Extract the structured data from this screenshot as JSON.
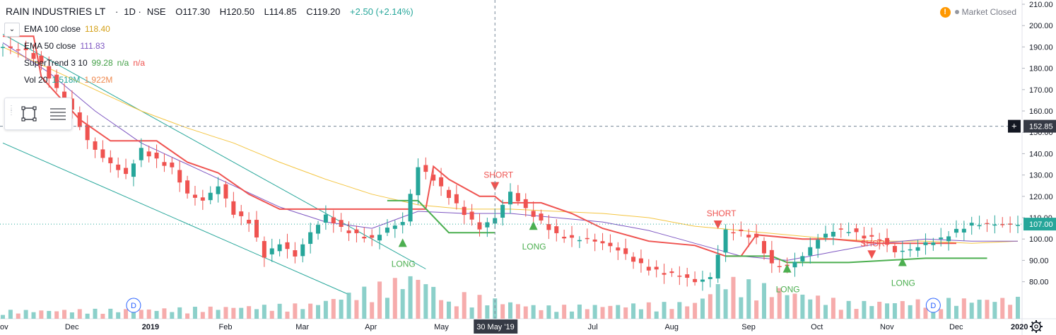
{
  "header": {
    "name": "RAIN INDUSTRIES LT",
    "interval": "1D",
    "exchange": "NSE",
    "open": "O117.30",
    "high": "H120.50",
    "low": "L114.85",
    "close": "C119.20",
    "change": "+2.50 (+2.14%)"
  },
  "indicators": [
    {
      "label": "EMA 100 close",
      "value": "118.40",
      "color": "#f4c542"
    },
    {
      "label": "EMA 50 close",
      "value": "111.83",
      "color": "#7e57c2"
    },
    {
      "label": "SuperTrend 3 10",
      "value": "99.28",
      "value2": "n/a",
      "value3": "n/a",
      "color": "#43a047"
    },
    {
      "label": "Vol 20",
      "value": "1.518M",
      "value2": "1.922M",
      "color": "#26a69a"
    }
  ],
  "market_status": {
    "icon": "warning-icon",
    "text": "Market Closed"
  },
  "colors": {
    "up": "#26a69a",
    "down": "#ef5350",
    "ema100": "#f4c542",
    "ema50": "#7e57c2",
    "supertrend_up": "#4caf50",
    "supertrend_down": "#ef5350",
    "trendline": "#26a69a"
  },
  "chart_data": {
    "type": "candlestick",
    "title": "RAIN INDUSTRIES LT · 1D · NSE",
    "y_axis_ticks": [
      80,
      90,
      100,
      110,
      120,
      130,
      140,
      150,
      160,
      170,
      180,
      190,
      200,
      210
    ],
    "ylim": [
      74,
      211
    ],
    "x_axis_labels": [
      "ov",
      "Dec",
      "2019",
      "Feb",
      "Mar",
      "Apr",
      "May",
      "30 May '19",
      "Jul",
      "Aug",
      "Sep",
      "Oct",
      "Nov",
      "Dec",
      "2020"
    ],
    "crosshair": {
      "price": "152.85",
      "date": "30 May '19"
    },
    "last_price": "107.00",
    "ema100_anchors": [
      [
        0,
        190
      ],
      [
        6,
        180
      ],
      [
        12,
        170
      ],
      [
        18,
        160
      ],
      [
        24,
        152
      ],
      [
        30,
        145
      ],
      [
        36,
        136
      ],
      [
        42,
        128
      ],
      [
        48,
        121
      ],
      [
        54,
        116
      ],
      [
        60,
        114
      ],
      [
        66,
        114
      ],
      [
        72,
        113
      ],
      [
        78,
        112
      ],
      [
        84,
        110
      ],
      [
        90,
        106
      ],
      [
        96,
        104
      ],
      [
        102,
        102
      ],
      [
        108,
        100
      ],
      [
        114,
        99
      ],
      [
        120,
        99
      ],
      [
        126,
        98
      ],
      [
        132,
        99
      ]
    ],
    "ema50_anchors": [
      [
        0,
        192
      ],
      [
        6,
        178
      ],
      [
        12,
        160
      ],
      [
        18,
        145
      ],
      [
        24,
        135
      ],
      [
        30,
        125
      ],
      [
        36,
        115
      ],
      [
        42,
        108
      ],
      [
        48,
        105
      ],
      [
        54,
        113
      ],
      [
        60,
        112
      ],
      [
        66,
        112
      ],
      [
        72,
        110
      ],
      [
        78,
        108
      ],
      [
        84,
        104
      ],
      [
        90,
        98
      ],
      [
        96,
        92
      ],
      [
        102,
        90
      ],
      [
        108,
        94
      ],
      [
        114,
        98
      ],
      [
        120,
        100
      ],
      [
        126,
        99
      ],
      [
        132,
        99
      ]
    ],
    "supertrend": [
      {
        "dir": "short",
        "points": [
          [
            0,
            195
          ],
          [
            4,
            195
          ],
          [
            5,
            176
          ],
          [
            10,
            156
          ],
          [
            14,
            146
          ],
          [
            20,
            146
          ],
          [
            24,
            136
          ],
          [
            28,
            131
          ],
          [
            32,
            121
          ],
          [
            36,
            114
          ],
          [
            48,
            114
          ],
          [
            55,
            114
          ],
          [
            56,
            134
          ],
          [
            58,
            128
          ],
          [
            62,
            120
          ],
          [
            64,
            120
          ],
          [
            65,
            117
          ],
          [
            70,
            117
          ],
          [
            74,
            112
          ],
          [
            78,
            105
          ],
          [
            84,
            99
          ],
          [
            90,
            97
          ],
          [
            94,
            92
          ],
          [
            96,
            92
          ],
          [
            98,
            102
          ],
          [
            104,
            100
          ],
          [
            108,
            100
          ],
          [
            114,
            98
          ],
          [
            118,
            98
          ],
          [
            124,
            98
          ]
        ]
      },
      {
        "dir": "long",
        "points": [
          [
            50,
            118
          ],
          [
            54,
            118
          ],
          [
            58,
            103
          ],
          [
            64,
            103
          ]
        ]
      },
      {
        "dir": "long",
        "points": [
          [
            94,
            92
          ],
          [
            100,
            92
          ],
          [
            102,
            89
          ],
          [
            108,
            89
          ],
          [
            110,
            89
          ],
          [
            120,
            91
          ],
          [
            128,
            91
          ]
        ]
      }
    ],
    "annotations": [
      {
        "text": "SHORT",
        "color": "#ef5350"
      },
      {
        "text": "SHORT",
        "color": "#ef5350"
      },
      {
        "text": "SHORT",
        "color": "#ef5350"
      },
      {
        "text": "LONG",
        "color": "#4caf50"
      },
      {
        "text": "LONG",
        "color": "#4caf50"
      },
      {
        "text": "LONG",
        "color": "#4caf50"
      },
      {
        "text": "LONG",
        "color": "#4caf50"
      }
    ],
    "dividend_markers": [
      "D",
      "D"
    ],
    "price_path": [
      [
        0,
        190
      ],
      [
        3,
        188
      ],
      [
        5,
        182
      ],
      [
        7,
        170
      ],
      [
        9,
        160
      ],
      [
        11,
        146
      ],
      [
        13,
        138
      ],
      [
        16,
        130
      ],
      [
        18,
        142
      ],
      [
        20,
        137
      ],
      [
        22,
        133
      ],
      [
        24,
        121
      ],
      [
        26,
        118
      ],
      [
        28,
        125
      ],
      [
        30,
        112
      ],
      [
        32,
        108
      ],
      [
        34,
        92
      ],
      [
        36,
        98
      ],
      [
        38,
        92
      ],
      [
        40,
        103
      ],
      [
        42,
        111
      ],
      [
        44,
        105
      ],
      [
        46,
        102
      ],
      [
        48,
        100
      ],
      [
        50,
        105
      ],
      [
        52,
        108
      ],
      [
        54,
        134
      ],
      [
        56,
        128
      ],
      [
        58,
        120
      ],
      [
        60,
        112
      ],
      [
        62,
        105
      ],
      [
        64,
        110
      ],
      [
        66,
        122
      ],
      [
        68,
        114
      ],
      [
        70,
        108
      ],
      [
        72,
        102
      ],
      [
        74,
        100
      ],
      [
        76,
        100
      ],
      [
        78,
        98
      ],
      [
        80,
        95
      ],
      [
        82,
        90
      ],
      [
        84,
        86
      ],
      [
        86,
        84
      ],
      [
        88,
        83
      ],
      [
        90,
        80
      ],
      [
        92,
        82
      ],
      [
        94,
        104
      ],
      [
        96,
        103
      ],
      [
        98,
        100
      ],
      [
        100,
        88
      ],
      [
        102,
        87
      ],
      [
        104,
        92
      ],
      [
        106,
        100
      ],
      [
        108,
        104
      ],
      [
        110,
        104
      ],
      [
        112,
        101
      ],
      [
        114,
        100
      ],
      [
        116,
        94
      ],
      [
        118,
        95
      ],
      [
        120,
        98
      ],
      [
        122,
        100
      ],
      [
        124,
        104
      ],
      [
        126,
        107
      ]
    ],
    "vol_path": [
      [
        0,
        0.1
      ],
      [
        20,
        0.12
      ],
      [
        40,
        0.18
      ],
      [
        54,
        0.55
      ],
      [
        56,
        0.4
      ],
      [
        58,
        0.2
      ],
      [
        60,
        0.3
      ],
      [
        70,
        0.15
      ],
      [
        90,
        0.2
      ],
      [
        94,
        0.5
      ],
      [
        110,
        0.2
      ],
      [
        128,
        0.25
      ]
    ]
  }
}
